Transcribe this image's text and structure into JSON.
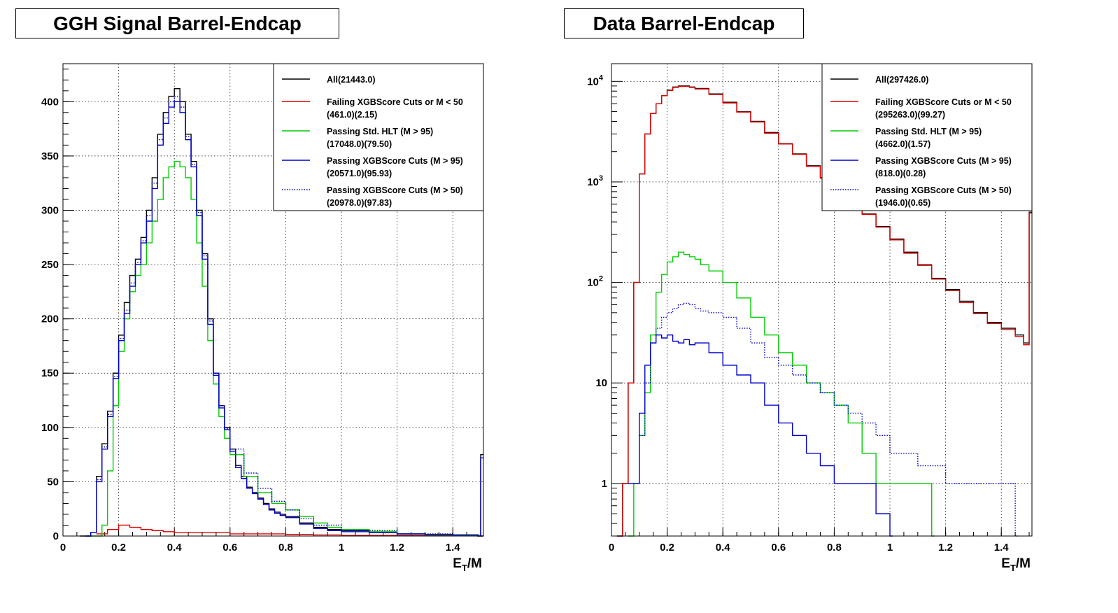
{
  "panels": [
    {
      "title": "GGH Signal Barrel-Endcap",
      "legend": [
        {
          "line1": "All(21443.0)",
          "line2": ""
        },
        {
          "line1": "Failing XGBScore Cuts or M < 50",
          "line2": "(461.0)(2.15)"
        },
        {
          "line1": "Passing Std. HLT (M > 95)",
          "line2": "(17048.0)(79.50)"
        },
        {
          "line1": "Passing XGBScore Cuts (M > 95)",
          "line2": "(20571.0)(95.93)"
        },
        {
          "line1": "Passing XGBScore Cuts (M > 50)",
          "line2": "(20978.0)(97.83)"
        }
      ]
    },
    {
      "title": "Data Barrel-Endcap",
      "legend": [
        {
          "line1": "All(297426.0)",
          "line2": ""
        },
        {
          "line1": "Failing XGBScore Cuts or M < 50",
          "line2": "(295263.0)(99.27)"
        },
        {
          "line1": "Passing Std. HLT (M > 95)",
          "line2": "(4662.0)(1.57)"
        },
        {
          "line1": "Passing XGBScore Cuts (M > 95)",
          "line2": "(818.0)(0.28)"
        },
        {
          "line1": "Passing XGBScore Cuts (M > 50)",
          "line2": "(1946.0)(0.65)"
        }
      ]
    }
  ],
  "chart_data": [
    {
      "type": "line",
      "title": "GGH Signal Barrel-Endcap",
      "xlabel": "E_T/M",
      "ylabel": "",
      "xlim": [
        0,
        1.51
      ],
      "ylim": [
        0,
        435
      ],
      "yscale": "linear",
      "grid": true,
      "legend_position": "top-right",
      "x_ticks": [
        "0",
        "0.2",
        "0.4",
        "0.6",
        "0.8",
        "1",
        "1.2",
        "1.4"
      ],
      "y_ticks": [
        "0",
        "50",
        "100",
        "150",
        "200",
        "250",
        "300",
        "350",
        "400"
      ],
      "series": [
        {
          "name": "All(21443.0)",
          "color": "#000000",
          "style": "solid",
          "x": [
            0.06,
            0.1,
            0.12,
            0.14,
            0.16,
            0.18,
            0.2,
            0.22,
            0.24,
            0.26,
            0.28,
            0.3,
            0.32,
            0.34,
            0.36,
            0.38,
            0.4,
            0.42,
            0.44,
            0.46,
            0.48,
            0.5,
            0.52,
            0.54,
            0.56,
            0.58,
            0.6,
            0.62,
            0.64,
            0.66,
            0.68,
            0.7,
            0.72,
            0.74,
            0.76,
            0.78,
            0.8,
            0.85,
            0.9,
            0.95,
            1.0,
            1.1,
            1.2,
            1.3,
            1.4,
            1.49,
            1.5
          ],
          "values": [
            0,
            3,
            55,
            85,
            115,
            150,
            185,
            215,
            240,
            255,
            275,
            300,
            330,
            370,
            390,
            405,
            412,
            400,
            370,
            345,
            300,
            260,
            200,
            150,
            120,
            100,
            80,
            65,
            55,
            45,
            40,
            35,
            30,
            25,
            22,
            20,
            18,
            12,
            8,
            6,
            5,
            3,
            2,
            1.5,
            1,
            0,
            75
          ]
        },
        {
          "name": "Failing XGBScore Cuts or M < 50 (461.0)(2.15)",
          "color": "#e00000",
          "style": "solid",
          "x": [
            0.12,
            0.16,
            0.2,
            0.24,
            0.28,
            0.32,
            0.36,
            0.4,
            0.44,
            0.5,
            0.6,
            0.7,
            0.8,
            0.9,
            1.0,
            1.5
          ],
          "values": [
            2,
            6,
            10,
            8,
            6,
            5,
            4,
            3,
            3,
            3,
            2,
            2,
            1.5,
            1,
            0.5,
            0
          ]
        },
        {
          "name": "Passing Std. HLT (M > 95) (17048.0)(79.50)",
          "color": "#00cc00",
          "style": "solid",
          "x": [
            0.1,
            0.14,
            0.16,
            0.18,
            0.2,
            0.22,
            0.24,
            0.26,
            0.28,
            0.3,
            0.32,
            0.34,
            0.36,
            0.38,
            0.4,
            0.42,
            0.44,
            0.46,
            0.48,
            0.5,
            0.52,
            0.54,
            0.56,
            0.58,
            0.6,
            0.65,
            0.7,
            0.75,
            0.8,
            0.85,
            0.9,
            0.95,
            1.0,
            1.1,
            1.2,
            1.3,
            1.4,
            1.5
          ],
          "values": [
            0,
            10,
            60,
            120,
            170,
            200,
            225,
            240,
            250,
            270,
            290,
            310,
            330,
            340,
            345,
            340,
            330,
            310,
            270,
            230,
            180,
            140,
            110,
            90,
            75,
            55,
            40,
            30,
            24,
            18,
            12,
            8,
            6,
            4,
            2,
            1,
            0.5,
            0
          ]
        },
        {
          "name": "Passing XGBScore Cuts (M > 95) (20571.0)(95.93)",
          "color": "#0000cc",
          "style": "solid",
          "x": [
            0.08,
            0.1,
            0.12,
            0.14,
            0.16,
            0.18,
            0.2,
            0.22,
            0.24,
            0.26,
            0.28,
            0.3,
            0.32,
            0.34,
            0.36,
            0.38,
            0.4,
            0.42,
            0.44,
            0.46,
            0.48,
            0.5,
            0.52,
            0.54,
            0.56,
            0.58,
            0.6,
            0.62,
            0.64,
            0.66,
            0.68,
            0.7,
            0.72,
            0.74,
            0.76,
            0.78,
            0.8,
            0.85,
            0.9,
            0.95,
            1.0,
            1.1,
            1.2,
            1.3,
            1.4,
            1.49,
            1.5
          ],
          "values": [
            0,
            3,
            50,
            80,
            110,
            145,
            180,
            205,
            230,
            250,
            270,
            290,
            320,
            360,
            380,
            395,
            400,
            390,
            365,
            340,
            295,
            255,
            195,
            148,
            118,
            98,
            78,
            63,
            53,
            44,
            39,
            34,
            29,
            24,
            21,
            19,
            17,
            11,
            7,
            5,
            4,
            3,
            2,
            1.5,
            1,
            0,
            72
          ]
        },
        {
          "name": "Passing XGBScore Cuts (M > 50) (20978.0)(97.83)",
          "color": "#0000cc",
          "style": "dotted",
          "x": [
            0.08,
            0.1,
            0.12,
            0.14,
            0.16,
            0.18,
            0.2,
            0.22,
            0.24,
            0.26,
            0.28,
            0.3,
            0.32,
            0.34,
            0.36,
            0.38,
            0.4,
            0.42,
            0.44,
            0.46,
            0.48,
            0.5,
            0.52,
            0.54,
            0.56,
            0.58,
            0.6,
            0.65,
            0.7,
            0.75,
            0.8,
            0.85,
            0.9,
            1.0,
            1.2,
            1.4,
            1.5
          ],
          "values": [
            0,
            3,
            52,
            82,
            112,
            147,
            182,
            208,
            233,
            252,
            272,
            295,
            325,
            365,
            385,
            400,
            405,
            395,
            368,
            342,
            298,
            258,
            198,
            150,
            120,
            99,
            80,
            58,
            44,
            32,
            24,
            16,
            10,
            5,
            2,
            1,
            0
          ]
        }
      ]
    },
    {
      "type": "line",
      "title": "Data Barrel-Endcap",
      "xlabel": "E_T/M",
      "ylabel": "",
      "xlim": [
        0,
        1.51
      ],
      "ylim": [
        0.3,
        15000
      ],
      "yscale": "log",
      "grid": true,
      "legend_position": "top-right",
      "x_ticks": [
        "0",
        "0.2",
        "0.4",
        "0.6",
        "0.8",
        "1",
        "1.2",
        "1.4"
      ],
      "y_ticks": [
        "1",
        "10",
        "10^2",
        "10^3",
        "10^4"
      ],
      "series": [
        {
          "name": "All(297426.0)",
          "color": "#000000",
          "style": "solid",
          "x": [
            0.02,
            0.04,
            0.06,
            0.08,
            0.1,
            0.12,
            0.14,
            0.16,
            0.18,
            0.2,
            0.22,
            0.24,
            0.26,
            0.28,
            0.3,
            0.35,
            0.4,
            0.45,
            0.5,
            0.55,
            0.6,
            0.65,
            0.7,
            0.75,
            0.8,
            0.85,
            0.9,
            0.95,
            1.0,
            1.05,
            1.1,
            1.15,
            1.2,
            1.25,
            1.3,
            1.35,
            1.4,
            1.45,
            1.48,
            1.5
          ],
          "values": [
            0.3,
            1,
            10,
            100,
            1200,
            3000,
            4800,
            6000,
            7200,
            8200,
            8800,
            9000,
            9000,
            8800,
            8500,
            7500,
            6200,
            5000,
            4000,
            3100,
            2400,
            1900,
            1450,
            1100,
            850,
            650,
            480,
            360,
            270,
            200,
            150,
            110,
            85,
            65,
            50,
            40,
            35,
            30,
            25,
            500
          ]
        },
        {
          "name": "Failing XGBScore Cuts or M < 50 (295263.0)(99.27)",
          "color": "#e00000",
          "style": "solid",
          "x": [
            0.02,
            0.04,
            0.06,
            0.08,
            0.1,
            0.12,
            0.14,
            0.16,
            0.18,
            0.2,
            0.22,
            0.24,
            0.26,
            0.28,
            0.3,
            0.35,
            0.4,
            0.45,
            0.5,
            0.55,
            0.6,
            0.65,
            0.7,
            0.75,
            0.8,
            0.85,
            0.9,
            0.95,
            1.0,
            1.05,
            1.1,
            1.15,
            1.2,
            1.25,
            1.3,
            1.35,
            1.4,
            1.45,
            1.48,
            1.5
          ],
          "values": [
            0.3,
            1,
            10,
            100,
            1200,
            3000,
            4800,
            6000,
            7200,
            8100,
            8700,
            8900,
            8900,
            8700,
            8400,
            7400,
            6100,
            4950,
            3950,
            3050,
            2380,
            1880,
            1430,
            1090,
            840,
            640,
            475,
            355,
            265,
            195,
            148,
            108,
            83,
            63,
            49,
            39,
            34,
            29,
            24,
            490
          ]
        },
        {
          "name": "Passing Std. HLT (M > 95) (4662.0)(1.57)",
          "color": "#00cc00",
          "style": "solid",
          "x": [
            0.06,
            0.08,
            0.1,
            0.12,
            0.14,
            0.16,
            0.18,
            0.2,
            0.22,
            0.24,
            0.26,
            0.28,
            0.3,
            0.32,
            0.35,
            0.4,
            0.45,
            0.5,
            0.55,
            0.6,
            0.65,
            0.7,
            0.75,
            0.8,
            0.85,
            0.9,
            0.95,
            1.0,
            1.05,
            1.1,
            1.15
          ],
          "values": [
            0.3,
            1,
            3,
            8,
            30,
            80,
            120,
            160,
            180,
            200,
            190,
            180,
            170,
            150,
            130,
            100,
            70,
            45,
            30,
            20,
            15,
            10,
            8,
            6,
            4,
            2,
            1,
            1,
            1,
            1,
            0.3
          ]
        },
        {
          "name": "Passing XGBScore Cuts (M > 95) (818.0)(0.28)",
          "color": "#0000cc",
          "style": "solid",
          "x": [
            0.06,
            0.08,
            0.1,
            0.12,
            0.14,
            0.16,
            0.18,
            0.2,
            0.22,
            0.24,
            0.26,
            0.28,
            0.3,
            0.35,
            0.4,
            0.45,
            0.5,
            0.55,
            0.6,
            0.65,
            0.7,
            0.75,
            0.8,
            0.85,
            0.9,
            0.95,
            1.0
          ],
          "values": [
            1,
            1,
            5,
            15,
            25,
            30,
            28,
            30,
            26,
            25,
            27,
            24,
            25,
            20,
            15,
            12,
            10,
            6,
            4,
            3,
            2,
            1.5,
            1,
            1,
            1,
            0.5,
            0.3
          ]
        },
        {
          "name": "Passing XGBScore Cuts (M > 50) (1946.0)(0.65)",
          "color": "#0000cc",
          "style": "dotted",
          "x": [
            0.1,
            0.12,
            0.14,
            0.16,
            0.18,
            0.2,
            0.22,
            0.24,
            0.26,
            0.28,
            0.3,
            0.32,
            0.35,
            0.4,
            0.45,
            0.5,
            0.55,
            0.6,
            0.65,
            0.7,
            0.75,
            0.8,
            0.85,
            0.9,
            0.95,
            1.0,
            1.1,
            1.2,
            1.3,
            1.4,
            1.45
          ],
          "values": [
            3,
            10,
            25,
            35,
            45,
            50,
            55,
            60,
            62,
            60,
            55,
            52,
            50,
            45,
            35,
            25,
            18,
            15,
            12,
            10,
            8,
            6,
            5,
            4,
            3,
            2,
            1.5,
            1,
            1,
            1,
            0.3
          ]
        }
      ]
    }
  ]
}
